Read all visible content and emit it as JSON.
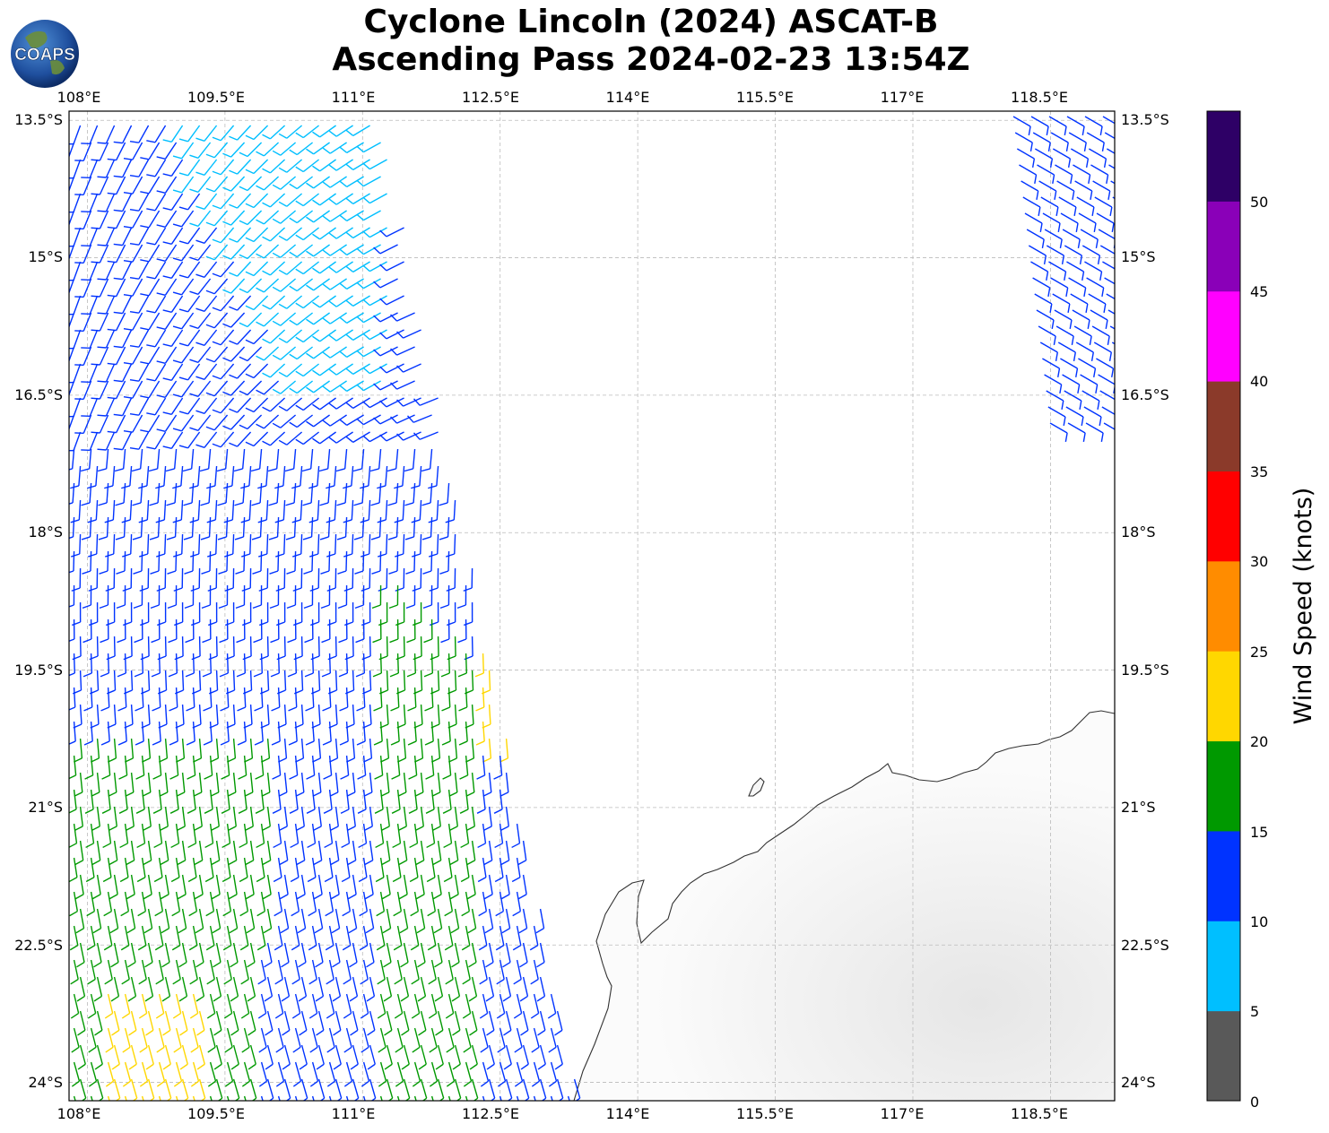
{
  "title": {
    "line1": "Cyclone Lincoln (2024) ASCAT-B",
    "line2": "Ascending Pass 2024-02-23 13:54Z"
  },
  "logo": {
    "text": "COAPS",
    "icon": "globe-icon"
  },
  "map": {
    "lon_range": [
      107.8,
      119.2
    ],
    "lat_range": [
      -24.2,
      -13.4
    ],
    "lon_ticks": [
      "108°E",
      "109.5°E",
      "111°E",
      "112.5°E",
      "114°E",
      "115.5°E",
      "117°E",
      "118.5°E"
    ],
    "lon_tick_values": [
      108,
      109.5,
      111,
      112.5,
      114,
      115.5,
      117,
      118.5
    ],
    "lat_ticks": [
      "13.5°S",
      "15°S",
      "16.5°S",
      "18°S",
      "19.5°S",
      "21°S",
      "22.5°S",
      "24°S"
    ],
    "lat_tick_values": [
      -13.5,
      -15,
      -16.5,
      -18,
      -19.5,
      -21,
      -22.5,
      -24
    ],
    "gridlines": true,
    "land_color": "#f2f2f2",
    "coast_color": "#333333"
  },
  "colorbar": {
    "label": "Wind Speed (knots)",
    "ticks": [
      "0",
      "5",
      "10",
      "15",
      "20",
      "25",
      "30",
      "35",
      "40",
      "45",
      "50"
    ],
    "colors": [
      "#595959",
      "#00bfff",
      "#0033ff",
      "#009900",
      "#ffd700",
      "#ff8c00",
      "#ff0000",
      "#8b3a2a",
      "#ff00ff",
      "#8a00b8",
      "#2e0066"
    ]
  }
}
